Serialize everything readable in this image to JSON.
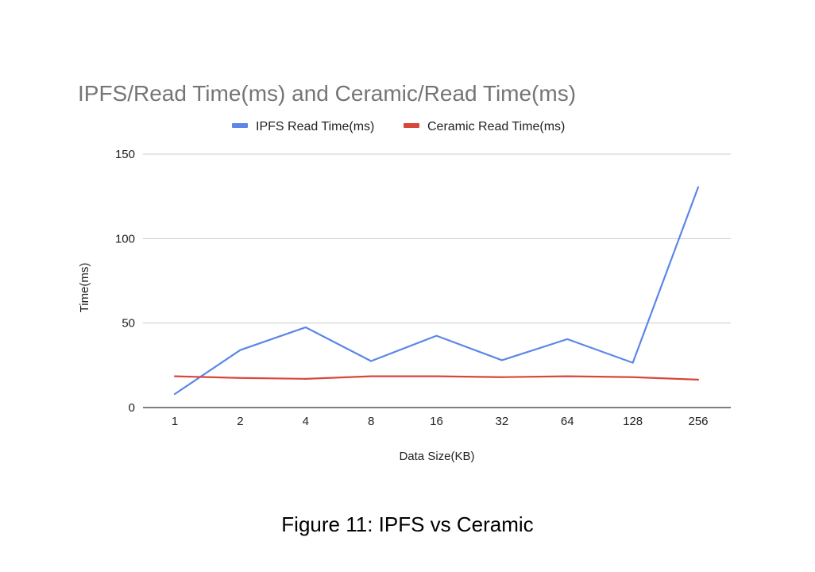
{
  "chart_data": {
    "type": "line",
    "title": "IPFS/Read Time(ms) and Ceramic/Read Time(ms)",
    "xlabel": "Data Size(KB)",
    "ylabel": "Time(ms)",
    "categories": [
      "1",
      "2",
      "4",
      "8",
      "16",
      "32",
      "64",
      "128",
      "256"
    ],
    "ylim": [
      0,
      150
    ],
    "yticks": [
      "0",
      "50",
      "100",
      "150"
    ],
    "grid": true,
    "legend_position": "top",
    "series": [
      {
        "name": "IPFS Read Time(ms)",
        "color": "#5b87e8",
        "values": [
          8,
          34,
          47.5,
          27.5,
          42.5,
          28,
          40.5,
          26.5,
          130.5
        ]
      },
      {
        "name": "Ceramic Read Time(ms)",
        "color": "#d9463a",
        "values": [
          18.5,
          17.5,
          17,
          18.5,
          18.5,
          18,
          18.5,
          18,
          16.5
        ]
      }
    ]
  },
  "caption": "Figure 11: IPFS vs Ceramic"
}
